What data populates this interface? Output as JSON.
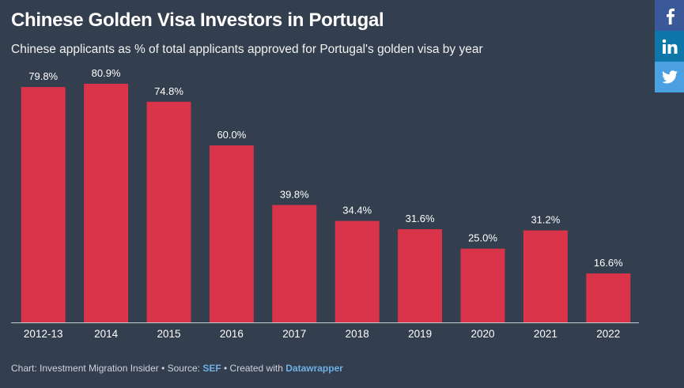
{
  "header": {
    "title": "Chinese Golden Visa Investors in Portugal",
    "subtitle": "Chinese applicants as % of total applicants approved for Portugal's golden visa by year"
  },
  "footer": {
    "prefix": "Chart: Investment Migration Insider • Source: ",
    "source_link": "SEF",
    "middle": " • Created with ",
    "tool_link": "Datawrapper"
  },
  "share": [
    {
      "icon": "facebook-icon",
      "color": "#3b5998"
    },
    {
      "icon": "linkedin-icon",
      "color": "#0e76a8"
    },
    {
      "icon": "twitter-icon",
      "color": "#4aa0e0"
    }
  ],
  "chart_data": {
    "type": "bar",
    "categories": [
      "2012-13",
      "2014",
      "2015",
      "2016",
      "2017",
      "2018",
      "2019",
      "2020",
      "2021",
      "2022"
    ],
    "values": [
      79.8,
      80.9,
      74.8,
      60.0,
      39.8,
      34.4,
      31.6,
      25.0,
      31.2,
      16.6
    ],
    "labels": [
      "79.8%",
      "80.9%",
      "74.8%",
      "60.0%",
      "39.8%",
      "34.4%",
      "31.6%",
      "25.0%",
      "31.2%",
      "16.6%"
    ],
    "ylim": [
      0,
      80.9
    ],
    "bar_color": "#d9344a",
    "grid": false
  }
}
